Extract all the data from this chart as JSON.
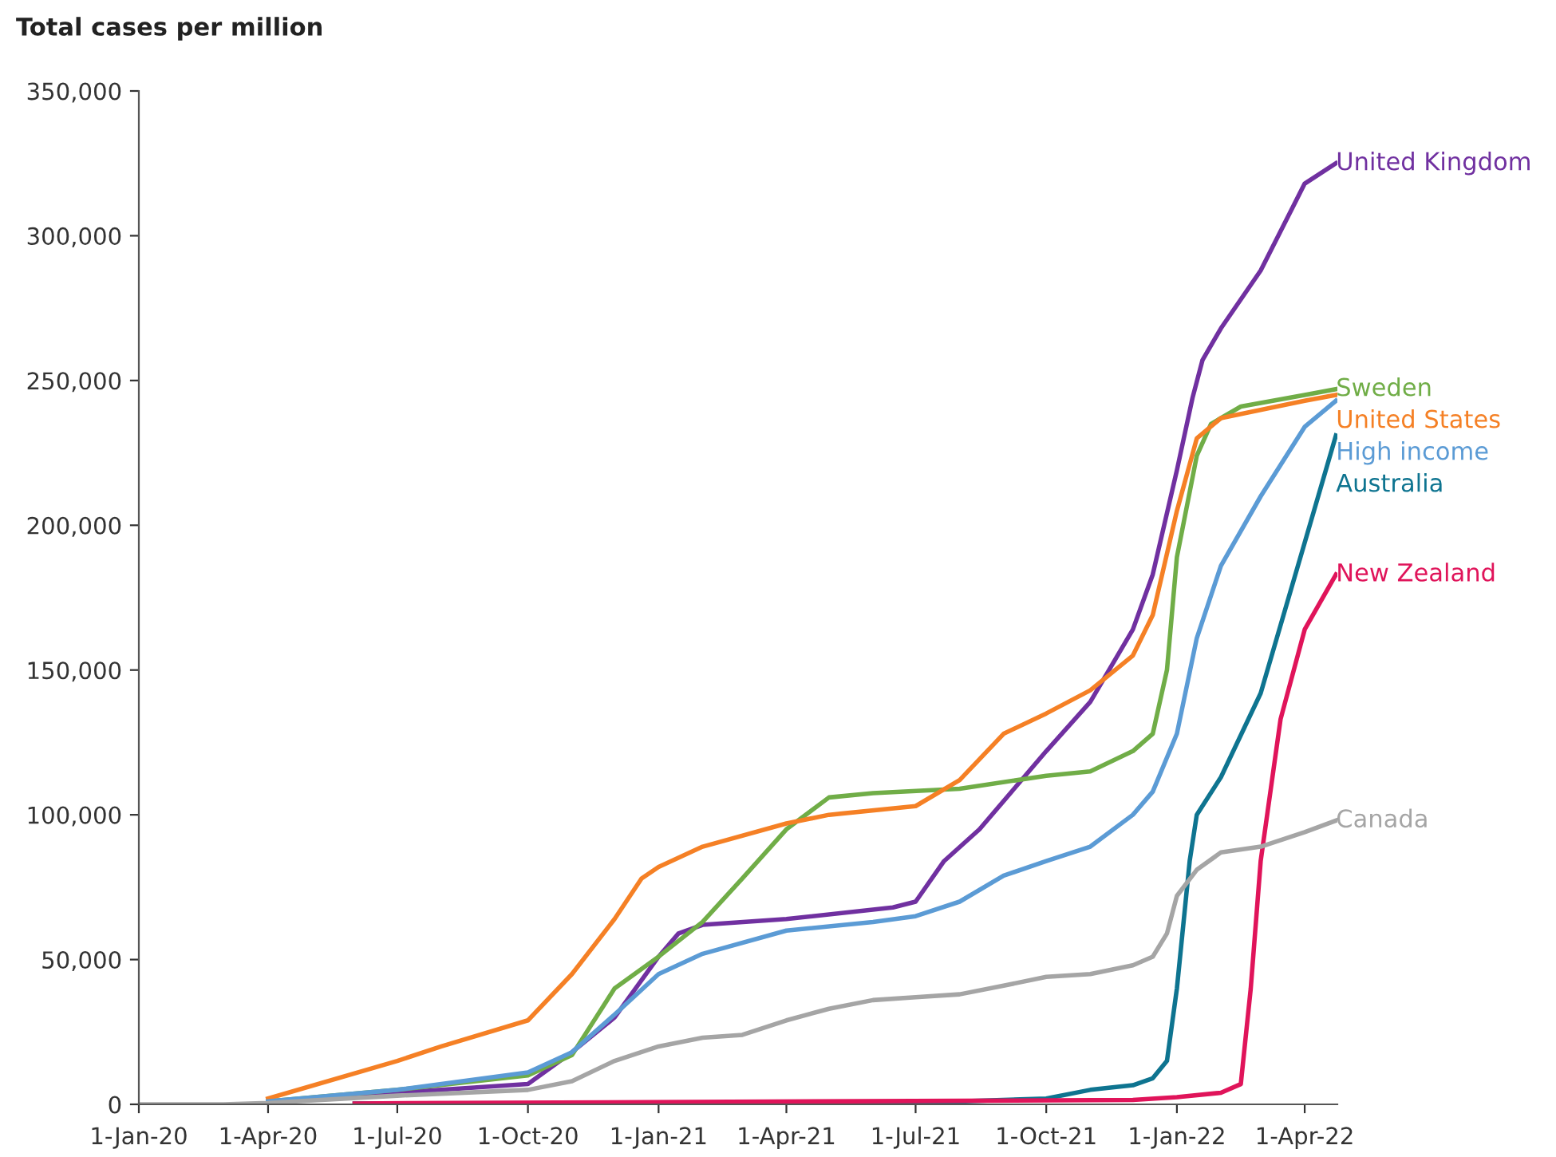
{
  "chart_data": {
    "type": "line",
    "ylabel": "Total cases per million",
    "legend": false,
    "grid": false,
    "marker": "none",
    "line_style": "solid",
    "xlim": [
      "2020-01-01",
      "2022-04-24"
    ],
    "ylim": [
      0,
      350000
    ],
    "yticks": [
      0,
      {
        "value": 50000,
        "label": "50,000"
      },
      {
        "value": 100000,
        "label": "100,000"
      },
      {
        "value": 150000,
        "label": "150,000"
      },
      {
        "value": 200000,
        "label": "200,000"
      },
      {
        "value": 250000,
        "label": "250,000"
      },
      {
        "value": 300000,
        "label": "300,000"
      },
      {
        "value": 350000,
        "label": "350,000"
      }
    ],
    "xticks": [
      {
        "value": "2020-01-01",
        "label": "1-Jan-20"
      },
      {
        "value": "2020-04-01",
        "label": "1-Apr-20"
      },
      {
        "value": "2020-07-01",
        "label": "1-Jul-20"
      },
      {
        "value": "2020-10-01",
        "label": "1-Oct-20"
      },
      {
        "value": "2021-01-01",
        "label": "1-Jan-21"
      },
      {
        "value": "2021-04-01",
        "label": "1-Apr-21"
      },
      {
        "value": "2021-07-01",
        "label": "1-Jul-21"
      },
      {
        "value": "2021-10-01",
        "label": "1-Oct-21"
      },
      {
        "value": "2022-01-01",
        "label": "1-Jan-22"
      },
      {
        "value": "2022-04-01",
        "label": "1-Apr-22"
      }
    ],
    "series": [
      {
        "name": "United Kingdom",
        "color": "#7030a0",
        "x": [
          "2020-04-01",
          "2020-07-01",
          "2020-10-01",
          "2020-11-01",
          "2020-12-01",
          "2021-01-01",
          "2021-01-15",
          "2021-02-01",
          "2021-04-01",
          "2021-06-15",
          "2021-07-01",
          "2021-07-21",
          "2021-08-15",
          "2021-10-01",
          "2021-11-01",
          "2021-12-01",
          "2021-12-15",
          "2022-01-01",
          "2022-01-12",
          "2022-01-19",
          "2022-02-01",
          "2022-03-01",
          "2022-04-01",
          "2022-04-23"
        ],
        "values": [
          1000,
          4000,
          7000,
          18000,
          30000,
          51000,
          59000,
          62000,
          64000,
          68000,
          70000,
          84000,
          95000,
          122000,
          139000,
          164000,
          183000,
          219000,
          244000,
          257000,
          268000,
          288000,
          318000,
          325000
        ]
      },
      {
        "name": "Sweden",
        "color": "#70ad47",
        "x": [
          "2020-04-01",
          "2020-07-01",
          "2020-10-01",
          "2020-11-01",
          "2020-12-01",
          "2021-01-01",
          "2021-02-01",
          "2021-03-01",
          "2021-04-01",
          "2021-05-01",
          "2021-06-01",
          "2021-08-01",
          "2021-10-01",
          "2021-11-01",
          "2021-12-01",
          "2021-12-15",
          "2021-12-25",
          "2022-01-01",
          "2022-01-15",
          "2022-01-25",
          "2022-02-15",
          "2022-04-01",
          "2022-04-23"
        ],
        "values": [
          1000,
          5000,
          10000,
          17000,
          40000,
          51000,
          63000,
          78000,
          95000,
          106000,
          107500,
          109000,
          113500,
          115000,
          122000,
          128000,
          150000,
          189000,
          224000,
          235000,
          241000,
          245000,
          247000
        ]
      },
      {
        "name": "United States",
        "color": "#f58025",
        "x": [
          "2020-04-01",
          "2020-07-01",
          "2020-08-01",
          "2020-10-01",
          "2020-11-01",
          "2020-12-01",
          "2020-12-20",
          "2021-01-01",
          "2021-02-01",
          "2021-04-01",
          "2021-05-01",
          "2021-07-01",
          "2021-08-01",
          "2021-09-01",
          "2021-10-01",
          "2021-11-01",
          "2021-12-01",
          "2021-12-15",
          "2022-01-01",
          "2022-01-15",
          "2022-02-01",
          "2022-04-01",
          "2022-04-23"
        ],
        "values": [
          2000,
          15000,
          20000,
          29000,
          45000,
          64000,
          78000,
          82000,
          89000,
          97000,
          100000,
          103000,
          112000,
          128000,
          135000,
          143000,
          155000,
          169000,
          205000,
          230000,
          237000,
          243000,
          245000
        ]
      },
      {
        "name": "High income",
        "color": "#5b9bd5",
        "x": [
          "2020-04-01",
          "2020-07-01",
          "2020-10-01",
          "2020-11-01",
          "2020-12-01",
          "2021-01-01",
          "2021-02-01",
          "2021-04-01",
          "2021-06-01",
          "2021-07-01",
          "2021-08-01",
          "2021-09-01",
          "2021-10-01",
          "2021-11-01",
          "2021-12-01",
          "2021-12-15",
          "2022-01-01",
          "2022-01-15",
          "2022-02-01",
          "2022-03-01",
          "2022-04-01",
          "2022-04-23"
        ],
        "values": [
          1000,
          5000,
          11000,
          18000,
          31000,
          45000,
          52000,
          60000,
          63000,
          65000,
          70000,
          79000,
          84000,
          89000,
          100000,
          108000,
          128000,
          161000,
          186000,
          210000,
          234000,
          243000
        ]
      },
      {
        "name": "Australia",
        "color": "#0e7490",
        "x": [
          "2020-06-01",
          "2021-07-01",
          "2021-08-01",
          "2021-10-01",
          "2021-11-01",
          "2021-12-01",
          "2021-12-15",
          "2021-12-25",
          "2022-01-01",
          "2022-01-10",
          "2022-01-15",
          "2022-02-01",
          "2022-03-01",
          "2022-04-01",
          "2022-04-23"
        ],
        "values": [
          300,
          500,
          1000,
          2000,
          5000,
          6600,
          9000,
          15000,
          40000,
          84000,
          100000,
          113000,
          142000,
          194000,
          231000
        ]
      },
      {
        "name": "New Zealand",
        "color": "#e0145a",
        "x": [
          "2020-06-01",
          "2021-12-01",
          "2022-01-01",
          "2022-02-01",
          "2022-02-15",
          "2022-02-22",
          "2022-03-01",
          "2022-03-15",
          "2022-04-01",
          "2022-04-23"
        ],
        "values": [
          300,
          1500,
          2500,
          4000,
          7000,
          40000,
          84000,
          133000,
          164000,
          183000
        ]
      },
      {
        "name": "Canada",
        "color": "#a5a5a5",
        "x": [
          "2020-01-01",
          "2020-03-01",
          "2020-04-01",
          "2020-07-01",
          "2020-10-01",
          "2020-11-01",
          "2020-12-01",
          "2021-01-01",
          "2021-02-01",
          "2021-03-01",
          "2021-04-01",
          "2021-05-01",
          "2021-06-01",
          "2021-07-01",
          "2021-08-01",
          "2021-09-01",
          "2021-10-01",
          "2021-11-01",
          "2021-12-01",
          "2021-12-15",
          "2021-12-25",
          "2022-01-01",
          "2022-01-15",
          "2022-02-01",
          "2022-03-01",
          "2022-04-01",
          "2022-04-23"
        ],
        "values": [
          0,
          0,
          500,
          3000,
          5000,
          8000,
          15000,
          20000,
          23000,
          24000,
          29000,
          33000,
          36000,
          37000,
          38000,
          41000,
          44000,
          45000,
          48000,
          51000,
          59000,
          72000,
          81000,
          87000,
          89000,
          94000,
          98000
        ]
      }
    ]
  }
}
